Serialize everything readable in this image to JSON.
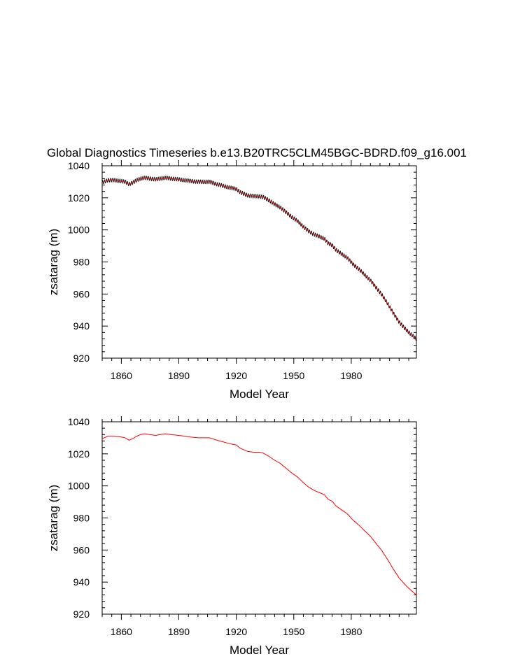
{
  "page": {
    "title": "Global Diagnostics Timeseries b.e13.B20TRC5CLM45BGC-BDRD.f09_g16.001"
  },
  "colors": {
    "monthly_line": "#000000",
    "annual_line": "#ff0000",
    "axes": "#000000"
  },
  "chart_data": [
    {
      "type": "line",
      "panel": "top",
      "xlabel": "Model Year",
      "ylabel": "zsatarag (m)",
      "xlim": [
        1850,
        2014
      ],
      "ylim": [
        920,
        1040
      ],
      "x_ticks": [
        1860,
        1890,
        1920,
        1950,
        1980
      ],
      "y_ticks": [
        920,
        940,
        960,
        980,
        1000,
        1020,
        1040
      ],
      "grid": false,
      "legend": "none",
      "series": [
        {
          "style": "monthly (black, seasonal cycle) with annual mean (red) overlaid",
          "color": "#000000",
          "seasonal_amplitude": 1.2,
          "x": [
            1850,
            1853,
            1856,
            1860,
            1862,
            1864,
            1866,
            1868,
            1870,
            1872,
            1875,
            1878,
            1880,
            1883,
            1886,
            1890,
            1893,
            1896,
            1900,
            1903,
            1906,
            1910,
            1913,
            1916,
            1920,
            1922,
            1924,
            1926,
            1929,
            1932,
            1934,
            1937,
            1940,
            1943,
            1946,
            1949,
            1952,
            1955,
            1958,
            1961,
            1964,
            1966,
            1968,
            1970,
            1972,
            1975,
            1978,
            1981,
            1984,
            1987,
            1990,
            1993,
            1996,
            1999,
            2002,
            2005,
            2008,
            2011,
            2014
          ],
          "y": [
            1029.5,
            1031,
            1031,
            1030.5,
            1030,
            1028.5,
            1029.5,
            1031,
            1032,
            1032.5,
            1032,
            1031.5,
            1032,
            1032.5,
            1032,
            1031.5,
            1031,
            1030.5,
            1030,
            1030,
            1030,
            1028.5,
            1027.5,
            1026.5,
            1025.5,
            1023.5,
            1022.5,
            1021.5,
            1021,
            1021,
            1020.5,
            1018.5,
            1016,
            1014,
            1011,
            1008,
            1005.5,
            1002,
            999,
            997,
            995.5,
            994.5,
            991.5,
            990.5,
            987.5,
            985,
            982.5,
            978.5,
            975.5,
            972,
            968.5,
            964,
            959.5,
            954,
            948,
            942.5,
            938.5,
            935,
            932
          ]
        }
      ]
    },
    {
      "type": "line",
      "panel": "bottom",
      "xlabel": "Model Year",
      "ylabel": "zsatarag (m)",
      "xlim": [
        1850,
        2014
      ],
      "ylim": [
        920,
        1040
      ],
      "x_ticks": [
        1860,
        1890,
        1920,
        1950,
        1980
      ],
      "y_ticks": [
        920,
        940,
        960,
        980,
        1000,
        1020,
        1040
      ],
      "grid": false,
      "legend": "none",
      "series": [
        {
          "style": "annual mean",
          "color": "#ff0000",
          "x": [
            1850,
            1853,
            1856,
            1860,
            1862,
            1864,
            1866,
            1868,
            1870,
            1872,
            1875,
            1878,
            1880,
            1883,
            1886,
            1890,
            1893,
            1896,
            1900,
            1903,
            1906,
            1910,
            1913,
            1916,
            1920,
            1922,
            1924,
            1926,
            1929,
            1932,
            1934,
            1937,
            1940,
            1943,
            1946,
            1949,
            1952,
            1955,
            1958,
            1961,
            1964,
            1966,
            1968,
            1970,
            1972,
            1975,
            1978,
            1981,
            1984,
            1987,
            1990,
            1993,
            1996,
            1999,
            2002,
            2005,
            2008,
            2011,
            2014
          ],
          "y": [
            1029.5,
            1031,
            1031,
            1030.5,
            1030,
            1028.5,
            1029.5,
            1031,
            1032,
            1032.5,
            1032,
            1031.5,
            1032,
            1032.5,
            1032,
            1031.5,
            1031,
            1030.5,
            1030,
            1030,
            1030,
            1028.5,
            1027.5,
            1026.5,
            1025.5,
            1023.5,
            1022.5,
            1021.5,
            1021,
            1021,
            1020.5,
            1018.5,
            1016,
            1014,
            1011,
            1008,
            1005.5,
            1002,
            999,
            997,
            995.5,
            994.5,
            991.5,
            990.5,
            987.5,
            985,
            982.5,
            978.5,
            975.5,
            972,
            968.5,
            964,
            959.5,
            954,
            948,
            942.5,
            938.5,
            935,
            932
          ]
        }
      ]
    }
  ]
}
